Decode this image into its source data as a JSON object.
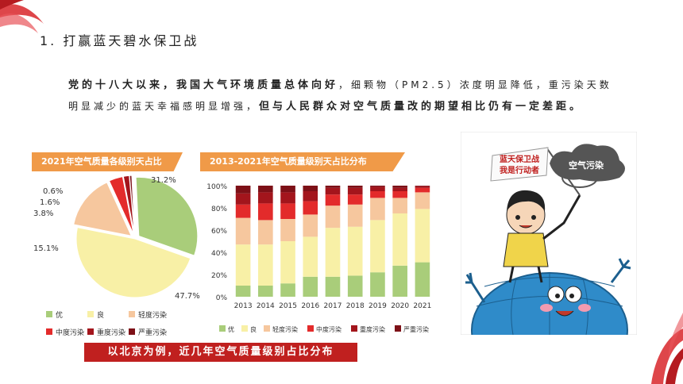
{
  "heading": "1. 打赢蓝天碧水保卫战",
  "paragraph": {
    "part1_bold": "党的十八大以来，我国大气环境质量总体向好",
    "part2": "，细颗物（PM2.5）浓度明显降低，重污染天数明显减少的蓝天幸福感明显增强，",
    "part3_bold": "但与人民群众对空气质量改的期望相比仍有一定差距。"
  },
  "caption": "以北京为例，近几年空气质量级别占比分布",
  "cartoon": {
    "flag_text_1": "蓝天保卫战",
    "flag_text_2": "我是行动者",
    "cloud_text": "空气污染"
  },
  "colors": {
    "优": "#a9cd7a",
    "良": "#f8f0a6",
    "轻度污染": "#f6c79e",
    "中度污染": "#e32b2b",
    "重度污染": "#a3151c",
    "严重污染": "#7d1017",
    "panel_bar": "#f09a48",
    "caption_bg": "#c0201f"
  },
  "chart_data": [
    {
      "type": "pie",
      "title": "2021年空气质量各级别天占比",
      "categories": [
        "优",
        "良",
        "轻度污染",
        "中度污染",
        "重度污染",
        "严重污染"
      ],
      "values": [
        31.2,
        47.7,
        15.1,
        3.8,
        1.6,
        0.6
      ],
      "labels": [
        "31.2%",
        "47.7%",
        "15.1%",
        "3.8%",
        "1.6%",
        "0.6%"
      ],
      "legend": [
        "优",
        "良",
        "轻度污染",
        "中度污染",
        "重度污染",
        "严重污染"
      ]
    },
    {
      "type": "bar",
      "stacked": true,
      "title": "2013-2021年空气质量级别天占比分布",
      "categories": [
        "2013",
        "2014",
        "2015",
        "2016",
        "2017",
        "2018",
        "2019",
        "2020",
        "2021"
      ],
      "yticks": [
        "0%",
        "20%",
        "40%",
        "60%",
        "80%",
        "100%"
      ],
      "ylim": [
        0,
        100
      ],
      "series": [
        {
          "name": "优",
          "values": [
            10,
            10,
            12,
            18,
            18,
            19,
            22,
            28,
            31
          ]
        },
        {
          "name": "良",
          "values": [
            37,
            37,
            38,
            36,
            44,
            44,
            47,
            47,
            48
          ]
        },
        {
          "name": "轻度污染",
          "values": [
            24,
            22,
            20,
            20,
            20,
            20,
            20,
            14,
            15
          ]
        },
        {
          "name": "中度污染",
          "values": [
            12,
            15,
            14,
            12,
            10,
            9,
            6,
            6,
            4
          ]
        },
        {
          "name": "重度污染",
          "values": [
            10,
            10,
            10,
            9,
            6,
            6,
            4,
            3,
            1.5
          ]
        },
        {
          "name": "严重污染",
          "values": [
            7,
            6,
            6,
            5,
            2,
            2,
            1,
            2,
            0.5
          ]
        }
      ],
      "legend": [
        "优",
        "良",
        "轻度污染",
        "中度污染",
        "重度污染",
        "严重污染"
      ]
    }
  ]
}
